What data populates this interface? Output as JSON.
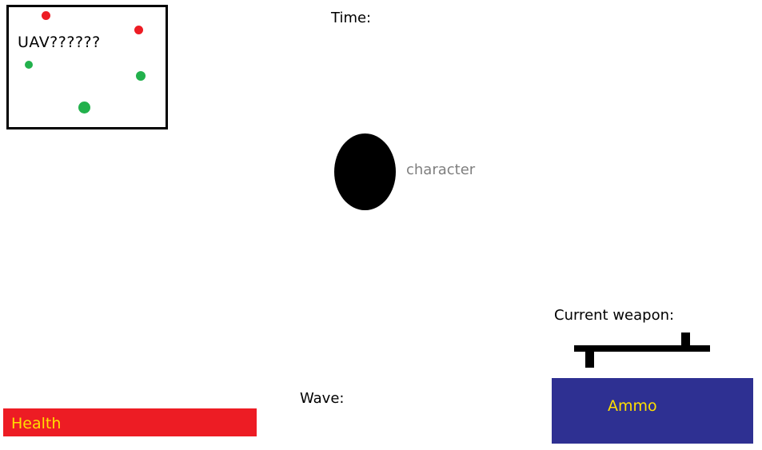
{
  "hud": {
    "uav": {
      "label": "UAV??????",
      "enemy_color": "#ed1c24",
      "friendly_color": "#22b14c"
    },
    "time_label": "Time:",
    "character_label": "character",
    "current_weapon_label": "Current weapon:",
    "weapon_icon": "rifle-icon",
    "wave_label": "Wave:",
    "health": {
      "label": "Health",
      "bar_color": "#ed1c24",
      "text_color": "#ffdf00"
    },
    "ammo": {
      "label": "Ammo",
      "box_color": "#2e3092",
      "text_color": "#ffdf00"
    }
  }
}
